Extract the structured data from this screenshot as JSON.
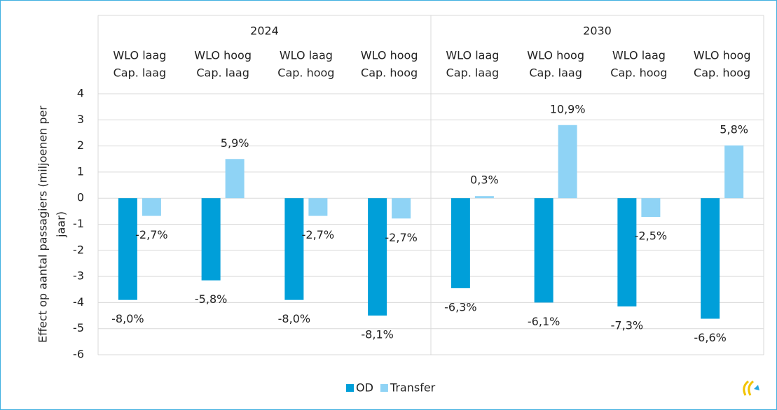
{
  "chart_data": {
    "type": "bar",
    "y_label": [
      "Effect op aantal passagiers (miljoenen per",
      "jaar)"
    ],
    "groups": [
      "2024",
      "2030"
    ],
    "categories": [
      [
        "WLO laag",
        "Cap. laag"
      ],
      [
        "WLO hoog",
        "Cap. laag"
      ],
      [
        "WLO laag",
        "Cap. hoog"
      ],
      [
        "WLO hoog",
        "Cap. hoog"
      ],
      [
        "WLO laag",
        "Cap. laag"
      ],
      [
        "WLO hoog",
        "Cap. laag"
      ],
      [
        "WLO laag",
        "Cap. hoog"
      ],
      [
        "WLO hoog",
        "Cap. hoog"
      ]
    ],
    "series": [
      {
        "name": "OD",
        "color": "#009fd9",
        "values": [
          -3.9,
          -3.15,
          -3.9,
          -4.5,
          -3.45,
          -4.0,
          -4.15,
          -4.62
        ],
        "change_labels": [
          "-8,0%",
          "-5,8%",
          "-8,0%",
          "-8,1%",
          "-6,3%",
          "-6,1%",
          "-7,3%",
          "-6,6%"
        ]
      },
      {
        "name": "Transfer",
        "color": "#8fd3f5",
        "values": [
          -0.68,
          1.5,
          -0.68,
          -0.78,
          0.08,
          2.8,
          -0.72,
          2.02
        ],
        "change_labels": [
          "-2,7%",
          "5,9%",
          "-2,7%",
          "-2,7%",
          "0,3%",
          "10,9%",
          "-2,5%",
          "5,8%"
        ]
      }
    ],
    "ylim": [
      -6,
      4
    ],
    "yticks": [
      -6,
      -5,
      -4,
      -3,
      -2,
      -1,
      0,
      1,
      2,
      3,
      4
    ],
    "grid": true,
    "legend": "bottom"
  }
}
